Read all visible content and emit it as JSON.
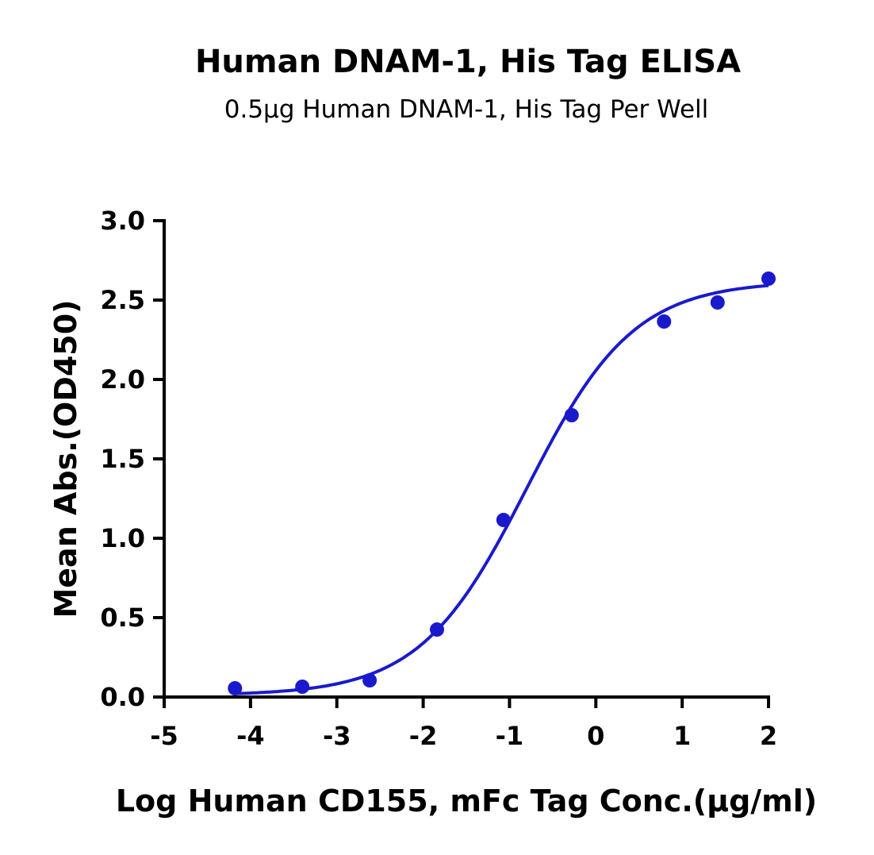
{
  "chart_data": {
    "type": "scatter",
    "title": "Human DNAM-1, His Tag ELISA",
    "subtitle": "0.5μg Human DNAM-1, His Tag Per Well",
    "xlabel": "Log Human CD155, mFc Tag Conc.(μg/ml)",
    "ylabel": "Mean Abs.(OD450)",
    "xlim": [
      -5,
      2
    ],
    "ylim": [
      0,
      3.0
    ],
    "xticks": [
      "-5",
      "-4",
      "-3",
      "-2",
      "-1",
      "0",
      "1",
      "2"
    ],
    "yticks": [
      "0.0",
      "0.5",
      "1.0",
      "1.5",
      "2.0",
      "2.5",
      "3.0"
    ],
    "grid": false,
    "fit": "sigmoidal 4PL curve",
    "color": "#1a1acc",
    "points": [
      {
        "x": -4.18,
        "y": 0.055
      },
      {
        "x": -3.4,
        "y": 0.065
      },
      {
        "x": -2.62,
        "y": 0.105
      },
      {
        "x": -1.84,
        "y": 0.425
      },
      {
        "x": -1.07,
        "y": 1.115
      },
      {
        "x": -0.28,
        "y": 1.775
      },
      {
        "x": 0.79,
        "y": 2.365
      },
      {
        "x": 1.41,
        "y": 2.485
      },
      {
        "x": 2.0,
        "y": 2.635
      }
    ]
  }
}
